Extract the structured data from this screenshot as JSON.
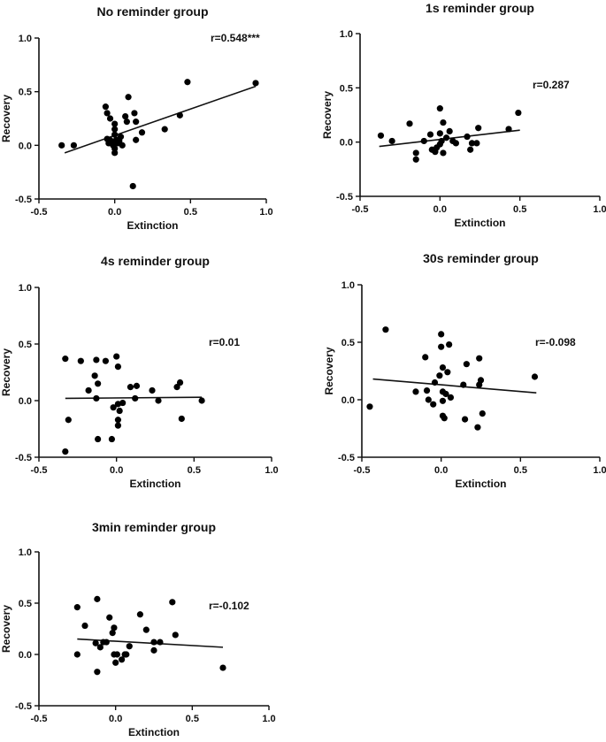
{
  "chart_data": [
    {
      "type": "scatter",
      "title": "No reminder group",
      "xlabel": "Extinction",
      "ylabel": "Recovery",
      "annotation": "r=0.548***",
      "xlim": [
        -0.5,
        1.0
      ],
      "ylim": [
        -0.5,
        1.0
      ],
      "xticks": [
        -0.5,
        0.0,
        0.5,
        1.0
      ],
      "yticks": [
        -0.5,
        0.0,
        0.5,
        1.0
      ],
      "fit_line": {
        "x": [
          -0.33,
          0.93
        ],
        "y": [
          -0.07,
          0.55
        ]
      },
      "points": [
        [
          -0.35,
          0.0
        ],
        [
          -0.27,
          0.0
        ],
        [
          -0.06,
          0.36
        ],
        [
          -0.05,
          0.3
        ],
        [
          -0.03,
          0.25
        ],
        [
          -0.05,
          0.06
        ],
        [
          -0.04,
          0.02
        ],
        [
          -0.03,
          0.05
        ],
        [
          -0.02,
          0.02
        ],
        [
          -0.01,
          0.0
        ],
        [
          0.0,
          0.2
        ],
        [
          0.0,
          0.15
        ],
        [
          0.0,
          0.1
        ],
        [
          0.0,
          -0.03
        ],
        [
          0.0,
          -0.07
        ],
        [
          0.01,
          0.05
        ],
        [
          0.02,
          0.02
        ],
        [
          0.03,
          0.04
        ],
        [
          0.04,
          0.08
        ],
        [
          0.05,
          0.0
        ],
        [
          0.07,
          0.27
        ],
        [
          0.08,
          0.22
        ],
        [
          0.09,
          0.45
        ],
        [
          0.13,
          0.3
        ],
        [
          0.14,
          0.22
        ],
        [
          0.14,
          0.05
        ],
        [
          0.18,
          0.12
        ],
        [
          0.12,
          -0.38
        ],
        [
          0.33,
          0.15
        ],
        [
          0.43,
          0.28
        ],
        [
          0.48,
          0.59
        ],
        [
          0.93,
          0.58
        ]
      ]
    },
    {
      "type": "scatter",
      "title": "1s reminder group",
      "xlabel": "Extinction",
      "ylabel": "Recovery",
      "annotation": "r=0.287",
      "xlim": [
        -0.5,
        1.0
      ],
      "ylim": [
        -0.5,
        1.0
      ],
      "xticks": [
        -0.5,
        0.0,
        0.5,
        1.0
      ],
      "yticks": [
        -0.5,
        0.0,
        0.5,
        1.0
      ],
      "fit_line": {
        "x": [
          -0.38,
          0.5
        ],
        "y": [
          -0.04,
          0.11
        ]
      },
      "points": [
        [
          -0.37,
          0.06
        ],
        [
          -0.3,
          0.01
        ],
        [
          -0.19,
          0.17
        ],
        [
          -0.15,
          -0.1
        ],
        [
          -0.15,
          -0.16
        ],
        [
          -0.1,
          0.01
        ],
        [
          -0.06,
          0.07
        ],
        [
          -0.05,
          -0.07
        ],
        [
          -0.03,
          -0.09
        ],
        [
          -0.02,
          -0.05
        ],
        [
          0.0,
          0.31
        ],
        [
          0.0,
          0.08
        ],
        [
          0.0,
          -0.02
        ],
        [
          0.01,
          0.01
        ],
        [
          0.02,
          0.18
        ],
        [
          0.02,
          -0.1
        ],
        [
          0.04,
          0.04
        ],
        [
          0.06,
          0.1
        ],
        [
          0.08,
          0.01
        ],
        [
          0.1,
          -0.01
        ],
        [
          0.17,
          0.05
        ],
        [
          0.19,
          -0.07
        ],
        [
          0.2,
          -0.01
        ],
        [
          0.23,
          -0.01
        ],
        [
          0.24,
          0.13
        ],
        [
          0.43,
          0.12
        ],
        [
          0.49,
          0.27
        ]
      ]
    },
    {
      "type": "scatter",
      "title": "4s reminder group",
      "xlabel": "Extinction",
      "ylabel": "Recovery",
      "annotation": "r=0.01",
      "xlim": [
        -0.5,
        1.0
      ],
      "ylim": [
        -0.5,
        1.0
      ],
      "xticks": [
        -0.5,
        0.0,
        0.5,
        1.0
      ],
      "yticks": [
        -0.5,
        0.0,
        0.5,
        1.0
      ],
      "fit_line": {
        "x": [
          -0.33,
          0.55
        ],
        "y": [
          0.02,
          0.03
        ]
      },
      "points": [
        [
          -0.33,
          0.37
        ],
        [
          -0.33,
          -0.45
        ],
        [
          -0.31,
          -0.17
        ],
        [
          -0.23,
          0.35
        ],
        [
          -0.18,
          0.09
        ],
        [
          -0.14,
          0.22
        ],
        [
          -0.13,
          0.36
        ],
        [
          -0.12,
          0.15
        ],
        [
          -0.12,
          -0.34
        ],
        [
          -0.13,
          0.02
        ],
        [
          -0.07,
          0.35
        ],
        [
          -0.03,
          -0.34
        ],
        [
          -0.02,
          -0.06
        ],
        [
          0.0,
          0.39
        ],
        [
          0.01,
          0.3
        ],
        [
          0.01,
          -0.03
        ],
        [
          0.01,
          -0.17
        ],
        [
          0.01,
          -0.22
        ],
        [
          0.02,
          -0.09
        ],
        [
          0.04,
          -0.02
        ],
        [
          0.09,
          0.12
        ],
        [
          0.12,
          0.02
        ],
        [
          0.13,
          0.13
        ],
        [
          0.23,
          0.09
        ],
        [
          0.27,
          0.0
        ],
        [
          0.39,
          0.12
        ],
        [
          0.41,
          0.16
        ],
        [
          0.42,
          -0.16
        ],
        [
          0.55,
          0.0
        ]
      ]
    },
    {
      "type": "scatter",
      "title": "30s reminder group",
      "xlabel": "Extinction",
      "ylabel": "Recovery",
      "annotation": "r=-0.098",
      "xlim": [
        -0.5,
        1.0
      ],
      "ylim": [
        -0.5,
        1.0
      ],
      "xticks": [
        -0.5,
        0.0,
        0.5,
        1.0
      ],
      "yticks": [
        -0.5,
        0.0,
        0.5,
        1.0
      ],
      "fit_line": {
        "x": [
          -0.43,
          0.6
        ],
        "y": [
          0.18,
          0.06
        ]
      },
      "points": [
        [
          -0.45,
          -0.06
        ],
        [
          -0.35,
          0.61
        ],
        [
          -0.16,
          0.07
        ],
        [
          -0.1,
          0.37
        ],
        [
          -0.09,
          0.08
        ],
        [
          -0.08,
          0.0
        ],
        [
          -0.05,
          -0.04
        ],
        [
          -0.04,
          0.15
        ],
        [
          -0.01,
          0.21
        ],
        [
          0.0,
          0.57
        ],
        [
          0.0,
          0.46
        ],
        [
          0.01,
          0.28
        ],
        [
          0.01,
          0.07
        ],
        [
          0.01,
          -0.01
        ],
        [
          0.01,
          -0.14
        ],
        [
          0.02,
          -0.16
        ],
        [
          0.03,
          0.05
        ],
        [
          0.04,
          0.24
        ],
        [
          0.05,
          0.48
        ],
        [
          0.06,
          0.02
        ],
        [
          0.14,
          0.13
        ],
        [
          0.15,
          -0.17
        ],
        [
          0.16,
          0.31
        ],
        [
          0.24,
          0.36
        ],
        [
          0.24,
          0.13
        ],
        [
          0.25,
          0.17
        ],
        [
          0.26,
          -0.12
        ],
        [
          0.23,
          -0.24
        ],
        [
          0.59,
          0.2
        ]
      ]
    },
    {
      "type": "scatter",
      "title": "3min reminder group",
      "xlabel": "Extinction",
      "ylabel": "Recovery",
      "annotation": "r=-0.102",
      "xlim": [
        -0.5,
        1.0
      ],
      "ylim": [
        -0.5,
        1.0
      ],
      "xticks": [
        -0.5,
        0.0,
        0.5,
        1.0
      ],
      "yticks": [
        -0.5,
        0.0,
        0.5,
        1.0
      ],
      "fit_line": {
        "x": [
          -0.25,
          0.7
        ],
        "y": [
          0.15,
          0.07
        ]
      },
      "points": [
        [
          -0.25,
          0.46
        ],
        [
          -0.25,
          0.0
        ],
        [
          -0.2,
          0.28
        ],
        [
          -0.13,
          0.11
        ],
        [
          -0.12,
          0.54
        ],
        [
          -0.12,
          -0.17
        ],
        [
          -0.1,
          0.07
        ],
        [
          -0.08,
          0.12
        ],
        [
          -0.06,
          0.12
        ],
        [
          -0.04,
          0.36
        ],
        [
          -0.02,
          0.21
        ],
        [
          -0.01,
          0.0
        ],
        [
          -0.01,
          0.26
        ],
        [
          0.0,
          -0.08
        ],
        [
          0.01,
          0.0
        ],
        [
          0.04,
          -0.05
        ],
        [
          0.06,
          0.0
        ],
        [
          0.07,
          0.0
        ],
        [
          0.09,
          0.08
        ],
        [
          0.16,
          0.39
        ],
        [
          0.2,
          0.24
        ],
        [
          0.25,
          0.12
        ],
        [
          0.25,
          0.04
        ],
        [
          0.29,
          0.12
        ],
        [
          0.37,
          0.51
        ],
        [
          0.39,
          0.19
        ],
        [
          0.7,
          -0.13
        ]
      ]
    }
  ]
}
